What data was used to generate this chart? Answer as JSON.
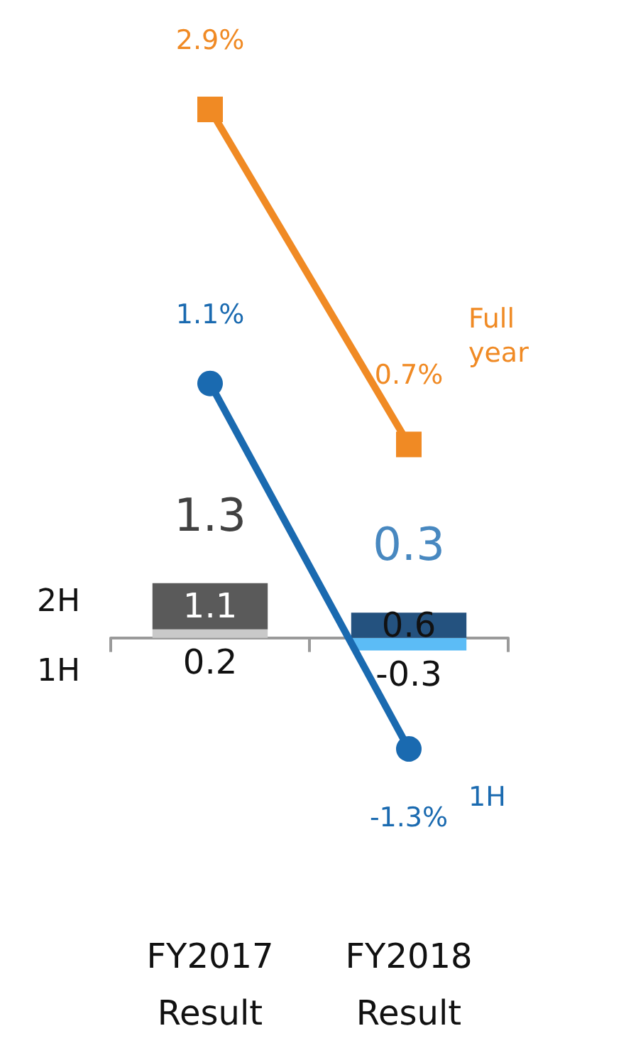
{
  "chart_data": [
    {
      "type": "bar",
      "stacked": true,
      "categories": [
        "FY2017\nResult",
        "FY2018\nResult"
      ],
      "legend": false,
      "grid": false,
      "tick_labels": "x",
      "series": [
        {
          "name": "1H",
          "colors": [
            "#c9c9c9",
            "#5cbcf6"
          ],
          "values": [
            0.2,
            -0.3
          ],
          "value_labels": [
            "0.2",
            "-0.3"
          ]
        },
        {
          "name": "2H",
          "colors": [
            "#5a5a5a",
            "#24527f"
          ],
          "values": [
            1.1,
            0.6
          ],
          "value_labels": [
            "1.1",
            "0.6"
          ]
        }
      ],
      "totals": [
        "1.3",
        "0.3"
      ]
    },
    {
      "type": "line",
      "categories": [
        null,
        null
      ],
      "legend": false,
      "grid": false,
      "tick_labels": false,
      "series": [
        {
          "name": "Full year",
          "color": "#f08a24",
          "marker": "square",
          "values": [
            2.9,
            0.7
          ],
          "value_labels": [
            "2.9%",
            "0.7%"
          ]
        },
        {
          "name": "1H",
          "color": "#1a6ab0",
          "marker": "circle",
          "values": [
            1.1,
            -1.3
          ],
          "value_labels": [
            "1.1%",
            "-1.3%"
          ]
        }
      ]
    }
  ]
}
